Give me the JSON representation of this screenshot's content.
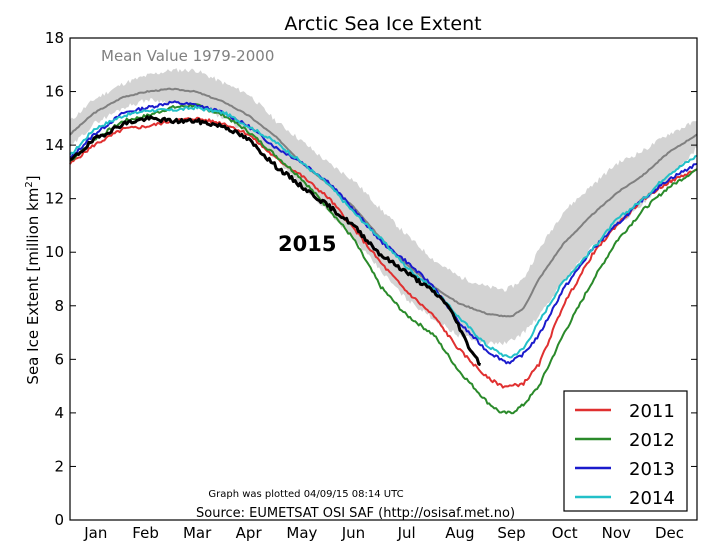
{
  "chart_data": {
    "type": "line",
    "title": "Arctic Sea Ice Extent",
    "xlabel": "",
    "ylabel": "Sea Ice Extent [million km",
    "ylabel_sup": "2",
    "ylabel_end": "]",
    "ylim": [
      0,
      18
    ],
    "yticks": [
      0,
      2,
      4,
      6,
      8,
      10,
      12,
      14,
      16,
      18
    ],
    "xlim": [
      1,
      366
    ],
    "months": [
      "Jan",
      "Feb",
      "Mar",
      "Apr",
      "May",
      "Jun",
      "Jul",
      "Aug",
      "Sep",
      "Oct",
      "Nov",
      "Dec"
    ],
    "month_centers": [
      16,
      45,
      75,
      105,
      136,
      166,
      197,
      228,
      258,
      289,
      319,
      350
    ],
    "grid": false,
    "legend_position": "bottom-right",
    "mean_label": "Mean Value 1979-2000",
    "year_label": "2015",
    "footnote_plotted": "Graph was plotted 04/09/15 08:14 UTC",
    "footnote_source": "Source: EUMETSAT OSI SAF (http://osisaf.met.no)",
    "mean_band": {
      "color": "#d3d3d3",
      "days": [
        1,
        15,
        32,
        46,
        60,
        74,
        91,
        105,
        121,
        135,
        152,
        166,
        182,
        196,
        213,
        227,
        244,
        255,
        258,
        265,
        274,
        288,
        305,
        319,
        335,
        349,
        366
      ],
      "upper": [
        14.9,
        15.7,
        16.3,
        16.6,
        16.8,
        16.8,
        16.3,
        15.9,
        14.9,
        14.2,
        13.3,
        12.7,
        11.6,
        10.7,
        9.7,
        9.1,
        8.7,
        8.6,
        8.7,
        9.0,
        10.1,
        11.5,
        12.5,
        13.3,
        13.8,
        14.4,
        14.9
      ],
      "lower": [
        13.9,
        14.8,
        15.4,
        15.7,
        15.6,
        15.4,
        15.0,
        14.4,
        13.5,
        12.5,
        11.5,
        10.5,
        9.3,
        8.3,
        7.5,
        6.9,
        6.6,
        6.6,
        6.7,
        7.0,
        7.6,
        8.9,
        10.2,
        11.0,
        11.8,
        12.7,
        13.9
      ]
    },
    "series": [
      {
        "name": "Mean Value 1979-2000",
        "color": "#808080",
        "days": [
          1,
          15,
          32,
          46,
          60,
          74,
          91,
          105,
          121,
          135,
          152,
          166,
          182,
          196,
          213,
          227,
          244,
          255,
          258,
          265,
          274,
          288,
          305,
          319,
          335,
          349,
          366
        ],
        "values": [
          14.4,
          15.2,
          15.8,
          16.0,
          16.1,
          16.0,
          15.6,
          15.1,
          14.3,
          13.4,
          12.5,
          11.7,
          10.5,
          9.6,
          8.7,
          8.1,
          7.7,
          7.6,
          7.6,
          7.9,
          9.0,
          10.3,
          11.4,
          12.2,
          12.9,
          13.7,
          14.4
        ]
      },
      {
        "name": "2011",
        "color": "#e03030",
        "days": [
          1,
          15,
          32,
          46,
          60,
          74,
          91,
          105,
          121,
          135,
          152,
          166,
          182,
          196,
          213,
          227,
          244,
          253,
          258,
          265,
          274,
          288,
          305,
          319,
          335,
          349,
          366
        ],
        "values": [
          13.3,
          14.0,
          14.6,
          14.7,
          14.9,
          15.0,
          14.8,
          14.4,
          13.5,
          12.9,
          12.0,
          10.9,
          9.6,
          8.6,
          7.6,
          6.4,
          5.3,
          5.0,
          5.0,
          5.1,
          5.8,
          8.0,
          9.9,
          11.0,
          12.0,
          12.6,
          13.1
        ]
      },
      {
        "name": "2012",
        "color": "#2a8a2a",
        "days": [
          1,
          15,
          32,
          46,
          60,
          74,
          91,
          105,
          121,
          135,
          152,
          166,
          182,
          196,
          213,
          227,
          244,
          252,
          258,
          265,
          274,
          288,
          305,
          319,
          335,
          349,
          366
        ],
        "values": [
          13.4,
          14.2,
          14.9,
          15.1,
          15.4,
          15.5,
          15.1,
          14.5,
          13.6,
          12.8,
          11.6,
          10.5,
          8.7,
          7.7,
          6.9,
          5.6,
          4.4,
          4.0,
          4.0,
          4.3,
          5.0,
          6.9,
          8.9,
          10.4,
          11.6,
          12.4,
          13.1
        ]
      },
      {
        "name": "2013",
        "color": "#1a1acc",
        "days": [
          1,
          15,
          32,
          46,
          60,
          74,
          91,
          105,
          121,
          135,
          152,
          166,
          182,
          196,
          213,
          227,
          244,
          255,
          258,
          265,
          274,
          288,
          305,
          319,
          335,
          349,
          366
        ],
        "values": [
          13.5,
          14.4,
          15.2,
          15.4,
          15.6,
          15.5,
          15.2,
          14.7,
          13.9,
          13.4,
          12.6,
          11.6,
          10.4,
          9.7,
          8.7,
          7.4,
          6.3,
          5.9,
          5.9,
          6.2,
          6.9,
          8.6,
          10.1,
          11.0,
          12.0,
          12.7,
          13.3
        ]
      },
      {
        "name": "2014",
        "color": "#22c0c8",
        "days": [
          1,
          15,
          32,
          46,
          60,
          74,
          91,
          105,
          121,
          135,
          152,
          166,
          182,
          196,
          213,
          227,
          244,
          255,
          258,
          265,
          274,
          288,
          305,
          319,
          335,
          349,
          366
        ],
        "values": [
          13.6,
          14.6,
          15.1,
          15.3,
          15.3,
          15.4,
          15.2,
          14.7,
          14.1,
          13.4,
          12.5,
          11.5,
          10.5,
          9.5,
          8.6,
          7.6,
          6.5,
          6.1,
          6.1,
          6.4,
          7.4,
          8.9,
          10.1,
          11.2,
          12.0,
          12.9,
          13.6
        ]
      },
      {
        "name": "2015",
        "color": "#000000",
        "days": [
          1,
          15,
          32,
          46,
          60,
          74,
          91,
          105,
          121,
          135,
          152,
          166,
          182,
          196,
          213,
          220,
          227,
          232,
          237,
          240
        ],
        "values": [
          13.4,
          14.2,
          14.8,
          15.0,
          14.9,
          14.9,
          14.7,
          14.2,
          13.2,
          12.5,
          11.7,
          11.0,
          9.9,
          9.3,
          8.5,
          8.1,
          7.3,
          6.6,
          6.1,
          5.8
        ]
      }
    ],
    "legend_entries": [
      "2011",
      "2012",
      "2013",
      "2014"
    ]
  }
}
